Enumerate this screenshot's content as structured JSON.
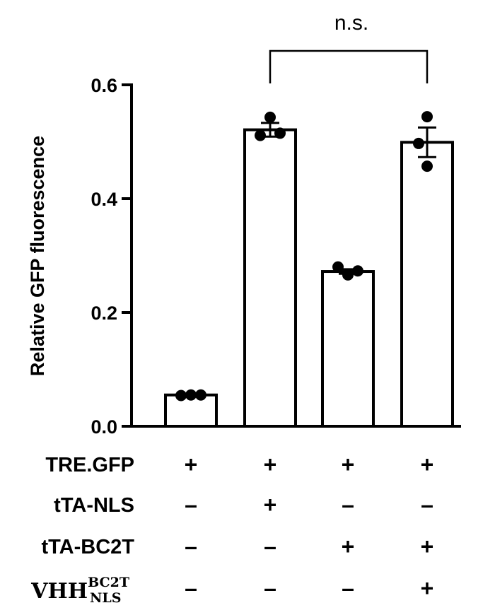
{
  "chart_data": {
    "type": "bar",
    "ylabel": "Relative GFP fluorescence",
    "ylim": [
      0,
      0.6
    ],
    "yticks": [
      "0.0",
      "0.2",
      "0.4",
      "0.6"
    ],
    "grid": false,
    "categories": [
      "1",
      "2",
      "3",
      "4"
    ],
    "values": [
      0.055,
      0.521,
      0.272,
      0.499
    ],
    "error": [
      0.002,
      0.012,
      0.004,
      0.026
    ],
    "points": [
      [
        0.054,
        0.055,
        0.055
      ],
      [
        0.543,
        0.511,
        0.515
      ],
      [
        0.28,
        0.266,
        0.273
      ],
      [
        0.544,
        0.497,
        0.457
      ]
    ],
    "significance": {
      "label": "n.s.",
      "from": 1,
      "to": 3
    },
    "conditions": [
      {
        "label": "TRE.GFP",
        "symbols": [
          "+",
          "+",
          "+",
          "+"
        ]
      },
      {
        "label": "tTA-NLS",
        "symbols": [
          "–",
          "+",
          "–",
          "–"
        ]
      },
      {
        "label": "tTA-BC2T",
        "symbols": [
          "–",
          "–",
          "+",
          "+"
        ]
      },
      {
        "label": "VHH",
        "label_sup": "BC2T",
        "label_sub": "NLS",
        "symbols": [
          "–",
          "–",
          "–",
          "+"
        ]
      }
    ]
  }
}
